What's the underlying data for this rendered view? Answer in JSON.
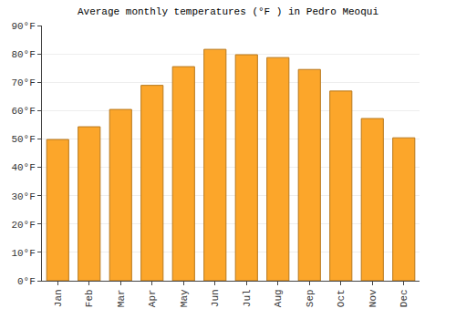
{
  "chart_data": {
    "type": "bar",
    "title": "Average monthly temperatures (°F ) in Pedro Meoqui",
    "categories": [
      "Jan",
      "Feb",
      "Mar",
      "Apr",
      "May",
      "Jun",
      "Jul",
      "Aug",
      "Sep",
      "Oct",
      "Nov",
      "Dec"
    ],
    "values": [
      49.8,
      54.3,
      60.4,
      68.9,
      75.5,
      81.6,
      79.7,
      78.7,
      74.5,
      66.9,
      57.2,
      50.4
    ],
    "color": "#fca62a",
    "ylim": [
      0,
      90
    ],
    "yticks": [
      {
        "value": 0,
        "label": "0°F"
      },
      {
        "value": 10,
        "label": "10°F"
      },
      {
        "value": 20,
        "label": "20°F"
      },
      {
        "value": 30,
        "label": "30°F"
      },
      {
        "value": 40,
        "label": "40°F"
      },
      {
        "value": 50,
        "label": "50°F"
      },
      {
        "value": 60,
        "label": "60°F"
      },
      {
        "value": 70,
        "label": "70°F"
      },
      {
        "value": 80,
        "label": "80°F"
      },
      {
        "value": 90,
        "label": "90°F"
      }
    ],
    "grid": true
  }
}
